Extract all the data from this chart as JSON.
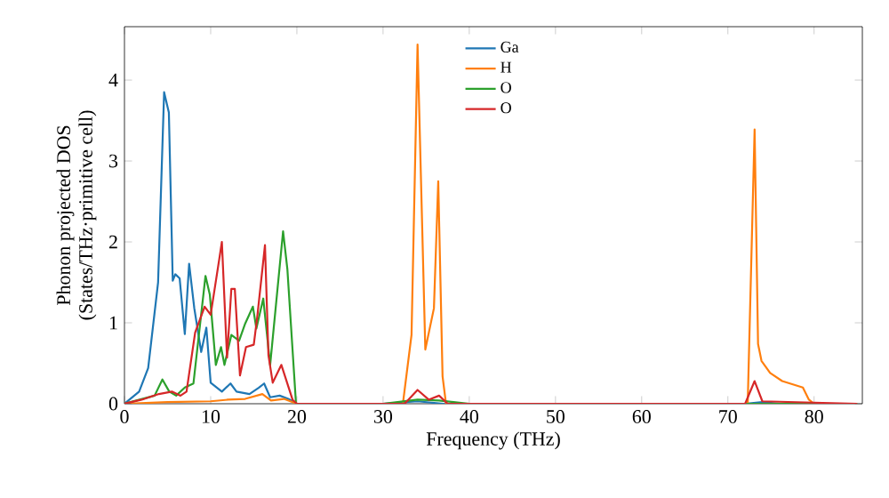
{
  "chart_data": {
    "type": "line",
    "xlabel": "Frequency (THz)",
    "ylabel": "Phonon projected DOS\n(States/THz·primitive cell)",
    "xlim": [
      0,
      85.6
    ],
    "ylim": [
      0,
      4.66
    ],
    "xticks": [
      0,
      10,
      20,
      30,
      40,
      50,
      60,
      70,
      80
    ],
    "yticks": [
      0,
      1,
      2,
      3,
      4
    ],
    "legend": "top",
    "grid": false,
    "marker": "none",
    "line_style": "solid",
    "series": [
      {
        "name": "Ga",
        "color": "#1f77b4",
        "x": [
          0,
          1.7,
          2.75,
          3.9,
          4.6,
          5.15,
          5.6,
          5.9,
          6.4,
          7.0,
          7.5,
          8.1,
          8.9,
          9.5,
          10,
          11.3,
          12.3,
          13,
          14.5,
          15.6,
          16.2,
          16.9,
          18,
          19,
          20,
          30,
          34,
          37,
          40,
          72,
          74,
          76,
          85
        ],
        "values": [
          0,
          0.15,
          0.44,
          1.5,
          3.85,
          3.6,
          1.52,
          1.6,
          1.55,
          0.86,
          1.73,
          1.18,
          0.64,
          0.94,
          0.26,
          0.15,
          0.25,
          0.15,
          0.12,
          0.2,
          0.25,
          0.08,
          0.1,
          0.06,
          0,
          0,
          0.03,
          0,
          0,
          0,
          0.02,
          0,
          0
        ]
      },
      {
        "name": "H",
        "color": "#ff7f0e",
        "x": [
          0,
          5,
          10,
          12,
          14,
          16,
          17,
          18.5,
          20,
          32.3,
          33.3,
          34,
          34.9,
          35.9,
          36.4,
          36.9,
          37.3,
          72.3,
          73.1,
          73.5,
          73.9,
          74.9,
          76.3,
          78.7,
          79.4,
          80,
          85
        ],
        "values": [
          0,
          0.02,
          0.03,
          0.05,
          0.06,
          0.12,
          0.04,
          0.06,
          0,
          0,
          0.85,
          4.44,
          0.67,
          1.18,
          2.75,
          0.34,
          0,
          0,
          3.39,
          0.74,
          0.53,
          0.38,
          0.28,
          0.2,
          0.05,
          0,
          0
        ]
      },
      {
        "name": "O",
        "color": "#2ca02c",
        "x": [
          0,
          3.5,
          4.4,
          5.2,
          6,
          7,
          8,
          9.4,
          9.9,
          10.6,
          11.2,
          11.6,
          12.4,
          13.3,
          14,
          14.9,
          15.3,
          16.1,
          16.9,
          18.4,
          18.9,
          19.9,
          30,
          34,
          36.5,
          40,
          85
        ],
        "values": [
          0,
          0.1,
          0.3,
          0.15,
          0.1,
          0.2,
          0.25,
          1.58,
          1.35,
          0.48,
          0.7,
          0.48,
          0.85,
          0.78,
          0.99,
          1.2,
          0.93,
          1.3,
          0.48,
          2.13,
          1.66,
          0,
          0,
          0.05,
          0.04,
          0,
          0
        ]
      },
      {
        "name": "O",
        "color": "#d62728",
        "x": [
          0,
          2,
          4,
          5.5,
          6.5,
          7.2,
          8.2,
          9.3,
          10,
          11,
          11.3,
          11.9,
          12.4,
          12.8,
          13.4,
          14.1,
          15,
          15.4,
          16.3,
          16.7,
          17.2,
          18.2,
          19.5,
          20,
          32.5,
          34,
          35.3,
          36.5,
          37.5,
          72,
          73.1,
          74,
          85
        ],
        "values": [
          0,
          0.05,
          0.12,
          0.15,
          0.1,
          0.15,
          0.88,
          1.2,
          1.1,
          1.79,
          2.0,
          0.57,
          1.42,
          1.42,
          0.35,
          0.7,
          0.73,
          1.07,
          1.96,
          0.6,
          0.26,
          0.48,
          0.05,
          0,
          0,
          0.17,
          0.05,
          0.1,
          0,
          0,
          0.28,
          0.03,
          0
        ]
      }
    ]
  }
}
